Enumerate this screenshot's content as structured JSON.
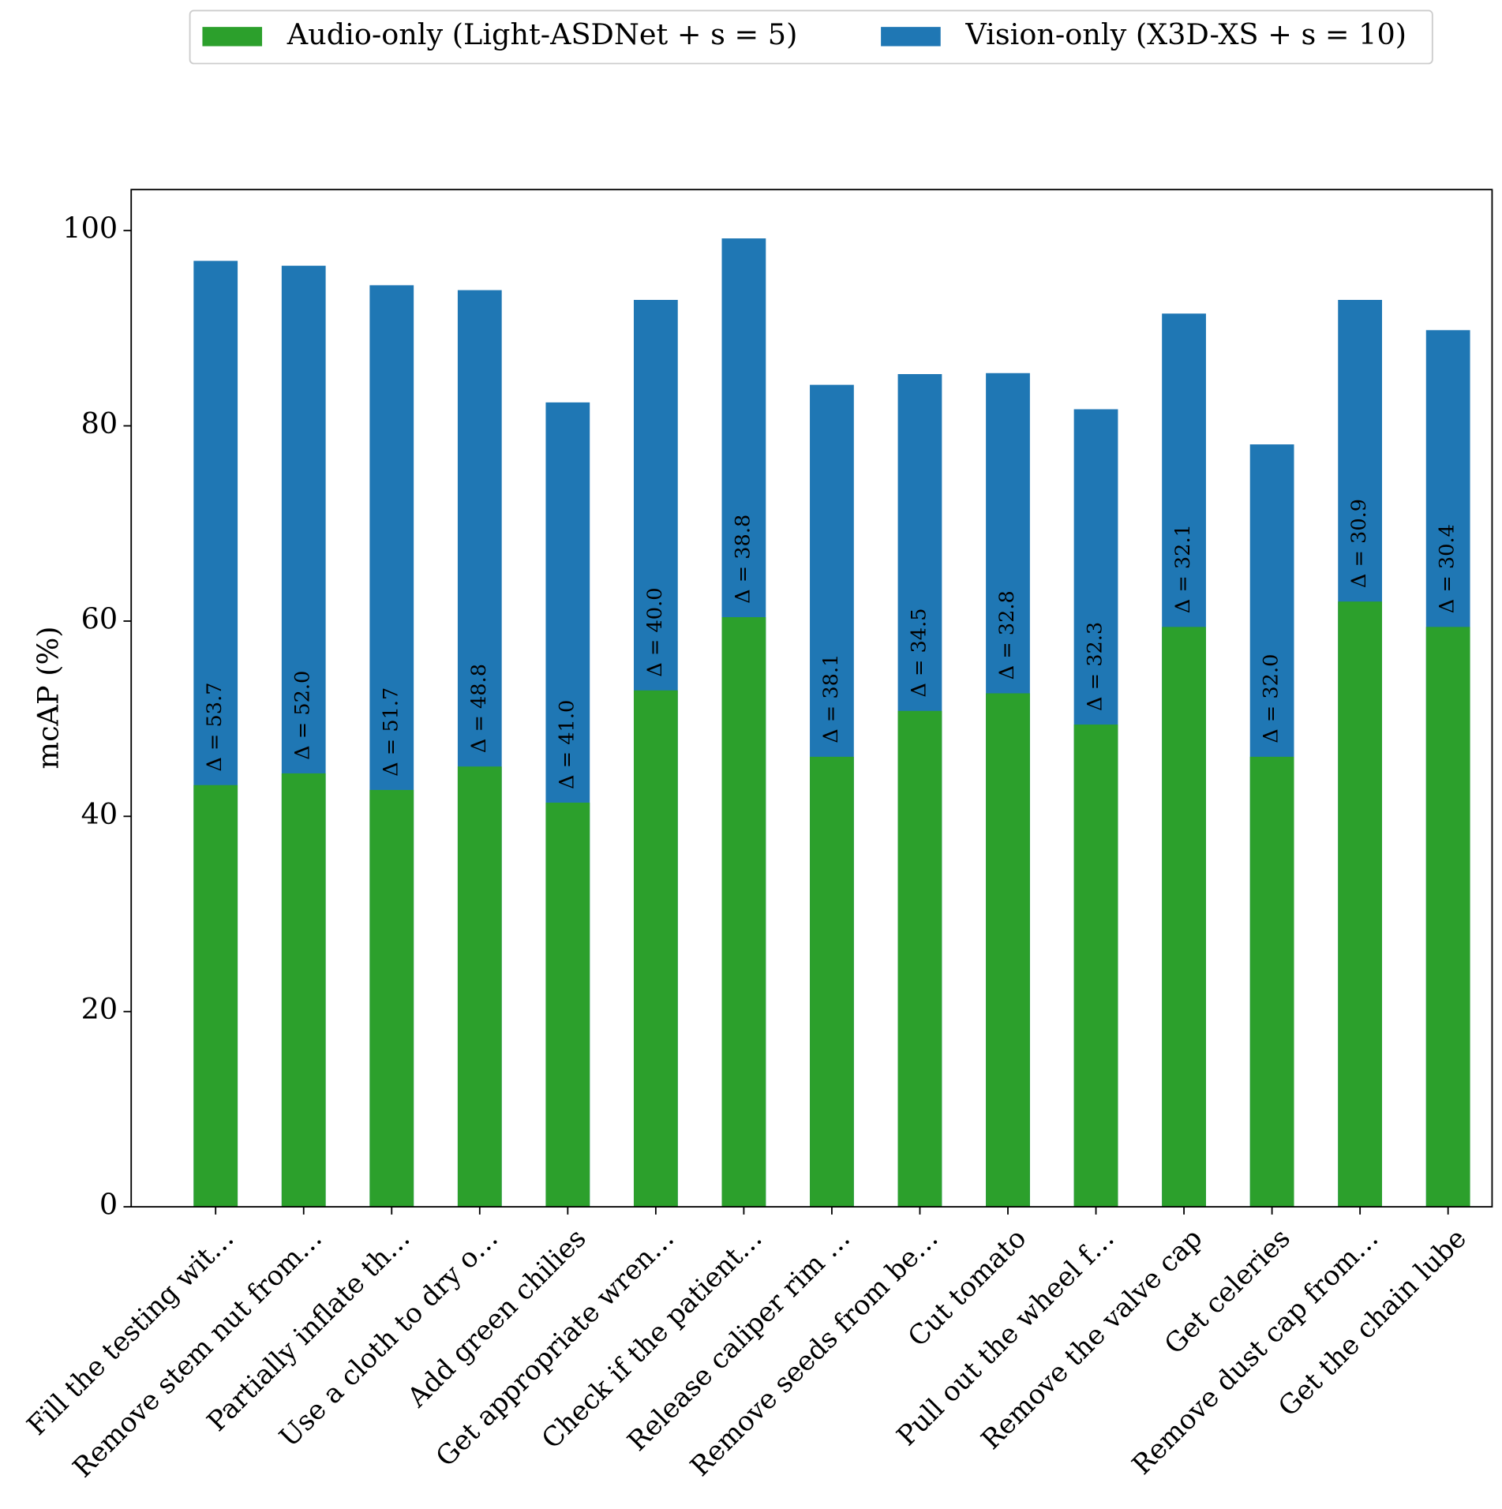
{
  "chart_data": {
    "type": "bar",
    "ylabel": "mcAP (%)",
    "categories": [
      "Fill the testing wit…",
      "Remove stem nut from…",
      "Partially inflate th…",
      "Use a cloth to dry o…",
      "Add green chilies",
      "Get appropriate wren…",
      "Check if the patient…",
      "Release caliper rim …",
      "Remove seeds from be…",
      "Cut tomato",
      "Pull out the wheel f…",
      "Remove the valve cap",
      "Get celeries",
      "Remove dust cap from…",
      "Get the chain lube"
    ],
    "series": [
      {
        "name": "Audio-only (Light-ASDNet + s = 5)",
        "color": "#2ca02c",
        "values": [
          43.2,
          44.4,
          42.7,
          45.1,
          41.4,
          52.9,
          60.4,
          46.1,
          50.8,
          52.6,
          49.4,
          59.4,
          46.1,
          62.0,
          59.4
        ]
      },
      {
        "name": "Vision-only (X3D-XS + s = 10)",
        "color": "#1f77b4",
        "values": [
          96.9,
          96.4,
          94.4,
          93.9,
          82.4,
          92.9,
          99.2,
          84.2,
          85.3,
          85.4,
          81.7,
          91.5,
          78.1,
          92.9,
          89.8
        ]
      }
    ],
    "annotations": [
      "Δ = 53.7",
      "Δ = 52.0",
      "Δ = 51.7",
      "Δ = 48.8",
      "Δ = 41.0",
      "Δ = 40.0",
      "Δ = 38.8",
      "Δ = 38.1",
      "Δ = 34.5",
      "Δ = 32.8",
      "Δ = 32.3",
      "Δ = 32.1",
      "Δ = 32.0",
      "Δ = 30.9",
      "Δ = 30.4"
    ],
    "ylim": [
      0,
      104.2
    ],
    "yticks": [
      0,
      20,
      40,
      60,
      80,
      100
    ],
    "grid": false,
    "legend": "top"
  }
}
